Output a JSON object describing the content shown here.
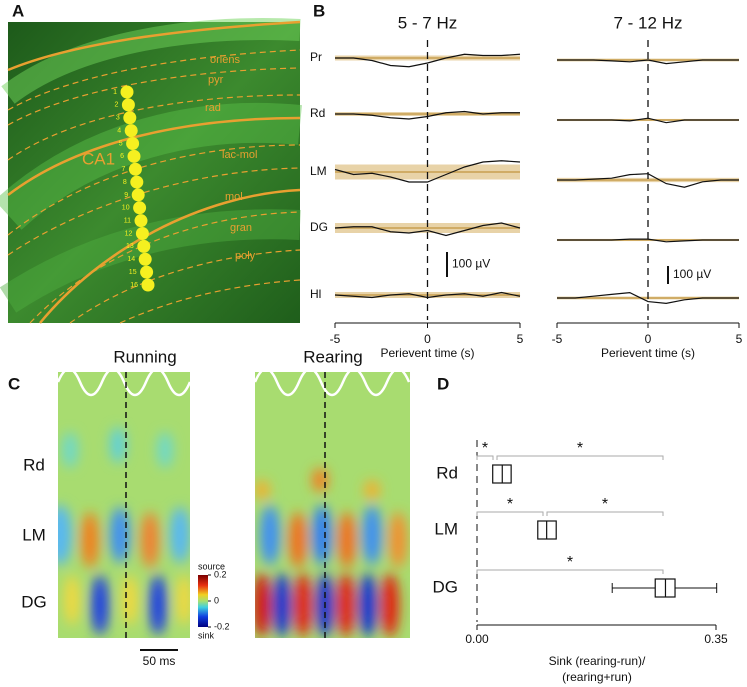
{
  "panel_labels": [
    "A",
    "B",
    "C",
    "D"
  ],
  "micrograph": {
    "region": "CA1",
    "layers": [
      "oriens",
      "pyr",
      "rad",
      "lac-mol",
      "mol",
      "gran",
      "poly"
    ],
    "electrodes": [
      "1",
      "2",
      "3",
      "4",
      "5",
      "6",
      "7",
      "8",
      "9",
      "10",
      "11",
      "12",
      "13",
      "14",
      "15",
      "16"
    ]
  },
  "chart_data": [
    {
      "type": "line",
      "title": "5 - 7 Hz",
      "xlabel": "Perievent time (s)",
      "xlim": [
        -5,
        5
      ],
      "xticks": [
        -5,
        0,
        5
      ],
      "x": [
        -5,
        -4,
        -3,
        -2,
        -1,
        0,
        1,
        2,
        3,
        4,
        5
      ],
      "scalebar": {
        "value": 100,
        "label": "100 µV"
      },
      "series": [
        {
          "name": "Pr",
          "values": [
            0,
            0,
            -10,
            -30,
            -35,
            -20,
            0,
            15,
            10,
            10,
            15
          ],
          "band": 10
        },
        {
          "name": "Rd",
          "values": [
            0,
            0,
            -5,
            -15,
            -20,
            -10,
            5,
            10,
            0,
            5,
            5
          ],
          "band": 8
        },
        {
          "name": "LM",
          "values": [
            10,
            -10,
            -5,
            -20,
            -40,
            -40,
            -10,
            20,
            40,
            45,
            40
          ],
          "band": 30
        },
        {
          "name": "DG",
          "values": [
            0,
            5,
            5,
            -15,
            -20,
            -10,
            -30,
            -10,
            10,
            20,
            0
          ],
          "band": 20
        },
        {
          "name": "Hl",
          "values": [
            0,
            -5,
            -10,
            0,
            5,
            -10,
            0,
            5,
            -5,
            10,
            -5
          ],
          "band": 12
        }
      ]
    },
    {
      "type": "line",
      "title": "7 - 12 Hz",
      "xlabel": "Perievent time (s)",
      "xlim": [
        -5,
        5
      ],
      "xticks": [
        -5,
        0,
        5
      ],
      "x": [
        -5,
        -4,
        -3,
        -2,
        -1,
        0,
        1,
        2,
        3,
        4,
        5
      ],
      "scalebar": {
        "value": 100,
        "label": "100 µV"
      },
      "series": [
        {
          "name": "Pr",
          "values": [
            0,
            0,
            0,
            -5,
            -10,
            0,
            -20,
            -10,
            0,
            0,
            0
          ],
          "band": 8
        },
        {
          "name": "Rd",
          "values": [
            0,
            0,
            0,
            0,
            -5,
            10,
            -15,
            0,
            0,
            0,
            0
          ],
          "band": 6
        },
        {
          "name": "LM",
          "values": [
            0,
            0,
            5,
            10,
            30,
            35,
            -20,
            -40,
            -10,
            0,
            0
          ],
          "band": 12
        },
        {
          "name": "DG",
          "values": [
            0,
            0,
            0,
            0,
            5,
            5,
            -10,
            -5,
            0,
            0,
            0
          ],
          "band": 6
        },
        {
          "name": "Hl",
          "values": [
            0,
            0,
            10,
            20,
            30,
            -20,
            -30,
            -10,
            0,
            0,
            0
          ],
          "band": 8
        }
      ]
    },
    {
      "type": "heatmap",
      "titles": [
        "Running",
        "Rearing"
      ],
      "rows": [
        "Rd",
        "LM",
        "DG"
      ],
      "colorbar": {
        "top": "source",
        "bottom": "sink",
        "lim": [
          -0.2,
          0.2
        ],
        "ticks": [
          0.2,
          0,
          -0.2
        ]
      },
      "scalebar": "50 ms"
    },
    {
      "type": "box",
      "categories": [
        "Rd",
        "LM",
        "DG"
      ],
      "xlabel": [
        "Sink (rearing-run)/",
        "(rearing+run)"
      ],
      "xlim": [
        0,
        0.35
      ],
      "xticks": [
        {
          "value": 0,
          "label": "0.00"
        },
        {
          "value": 0.35,
          "label": "0.35"
        }
      ],
      "q1": [
        0.023,
        0.089,
        0.261
      ],
      "median": [
        0.037,
        0.102,
        0.276
      ],
      "q3": [
        0.05,
        0.116,
        0.29
      ],
      "whisker_low": [
        null,
        null,
        0.198
      ],
      "whisker_high": [
        null,
        null,
        0.351
      ],
      "significance": [
        "*",
        "*",
        "*",
        "*",
        "*"
      ]
    }
  ]
}
